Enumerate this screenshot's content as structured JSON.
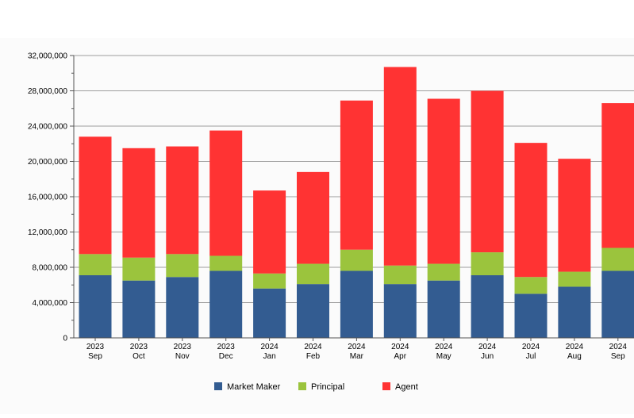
{
  "chart_data": {
    "type": "bar",
    "stacked": true,
    "title": "",
    "xlabel": "",
    "ylabel": "",
    "categories": [
      [
        "2023",
        "Sep"
      ],
      [
        "2023",
        "Oct"
      ],
      [
        "2023",
        "Nov"
      ],
      [
        "2023",
        "Dec"
      ],
      [
        "2024",
        "Jan"
      ],
      [
        "2024",
        "Feb"
      ],
      [
        "2024",
        "Mar"
      ],
      [
        "2024",
        "Apr"
      ],
      [
        "2024",
        "May"
      ],
      [
        "2024",
        "Jun"
      ],
      [
        "2024",
        "Jul"
      ],
      [
        "2024",
        "Aug"
      ],
      [
        "2024",
        "Sep"
      ]
    ],
    "series": [
      {
        "name": "Market Maker",
        "color": "#335C91",
        "values": [
          7100000,
          6500000,
          6900000,
          7600000,
          5600000,
          6100000,
          7600000,
          6100000,
          6500000,
          7100000,
          5000000,
          5800000,
          7600000
        ]
      },
      {
        "name": "Principal",
        "color": "#9BC43D",
        "values": [
          2400000,
          2600000,
          2600000,
          1700000,
          1700000,
          2300000,
          2400000,
          2100000,
          1900000,
          2600000,
          1900000,
          1700000,
          2600000
        ]
      },
      {
        "name": "Agent",
        "color": "#FF3333",
        "values": [
          13300000,
          12400000,
          12200000,
          14200000,
          9400000,
          10400000,
          16900000,
          22500000,
          18700000,
          18300000,
          15200000,
          12800000,
          16400000
        ]
      }
    ],
    "ylim": [
      0,
      32000000
    ],
    "yticks": [
      0,
      4000000,
      8000000,
      12000000,
      16000000,
      20000000,
      24000000,
      28000000,
      32000000
    ],
    "ytick_labels": [
      "0",
      "4,000,000",
      "8,000,000",
      "12,000,000",
      "16,000,000",
      "20,000,000",
      "24,000,000",
      "28,000,000",
      "32,000,000"
    ],
    "grid": true,
    "legend_position": "bottom-center",
    "colors": {
      "plot_background": "#FBFBFB",
      "gridline": "#9E9E9E",
      "axis": "#555555"
    }
  }
}
